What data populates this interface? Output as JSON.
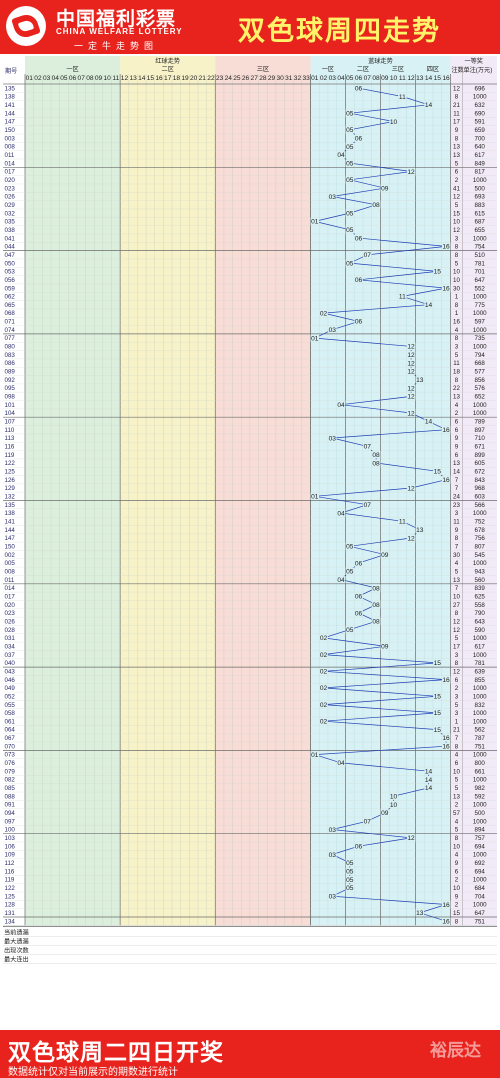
{
  "header": {
    "brand_cn": "中国福利彩票",
    "brand_en": "CHINA WELFARE LOTTERY",
    "slogan": "一定牛走势图",
    "title": "双色球周四走势"
  },
  "footer": {
    "title": "双色球周二四日开奖",
    "note": "数据统计仅对当前展示的期数进行统计",
    "watermark": "裕辰达"
  },
  "colors": {
    "red_ball": "#d41a1a",
    "blue_ball": "#1f3fb5",
    "zone_one_bg": "#dcefdc",
    "zone_two_bg": "#f7f2c8",
    "zone_three_bg": "#f8dcd6",
    "blue_zone_bg": "#d8f1f4",
    "header_bg": "#e8231d"
  },
  "chart_data": {
    "type": "table",
    "title": "双色球周四走势",
    "column_headers": {
      "period": "期号",
      "red_trend": "红球走势",
      "blue_trend": "蓝球走势",
      "first_prize": "一等奖",
      "count": "注数",
      "amount": "单注(万元)"
    },
    "red_zones": [
      "一区",
      "二区",
      "三区"
    ],
    "blue_zones": [
      "一区",
      "二区",
      "三区",
      "四区"
    ],
    "red_numbers": [
      "01",
      "02",
      "03",
      "04",
      "05",
      "06",
      "07",
      "08",
      "09",
      "10",
      "11",
      "12",
      "13",
      "14",
      "15",
      "16",
      "17",
      "18",
      "19",
      "20",
      "21",
      "22",
      "23",
      "24",
      "25",
      "26",
      "27",
      "28",
      "29",
      "30",
      "31",
      "32",
      "33"
    ],
    "blue_numbers": [
      "01",
      "02",
      "03",
      "04",
      "05",
      "06",
      "07",
      "08",
      "09",
      "10",
      "11",
      "12",
      "13",
      "14",
      "15",
      "16"
    ],
    "rows": [
      {
        "period": "135",
        "blue": 6,
        "count": 12,
        "amount": 696
      },
      {
        "period": "138",
        "blue": 11,
        "count": 8,
        "amount": 1000
      },
      {
        "period": "141",
        "blue": 14,
        "count": 21,
        "amount": 632
      },
      {
        "period": "144",
        "blue": 5,
        "count": 11,
        "amount": 690
      },
      {
        "period": "147",
        "blue": 10,
        "count": 17,
        "amount": 591
      },
      {
        "period": "150",
        "blue": 5,
        "count": 9,
        "amount": 659
      },
      {
        "period": "003",
        "blue": 6,
        "count": 8,
        "amount": 700
      },
      {
        "period": "008",
        "blue": 5,
        "count": 13,
        "amount": 640
      },
      {
        "period": "011",
        "blue": 4,
        "count": 13,
        "amount": 617
      },
      {
        "period": "014",
        "blue": 5,
        "count": 5,
        "amount": 849
      },
      {
        "period": "017",
        "blue": 12,
        "count": 6,
        "amount": 817
      },
      {
        "period": "020",
        "blue": 5,
        "count": 2,
        "amount": 1000
      },
      {
        "period": "023",
        "blue": 9,
        "count": 41,
        "amount": 500
      },
      {
        "period": "026",
        "blue": 3,
        "count": 12,
        "amount": 693
      },
      {
        "period": "029",
        "blue": 8,
        "count": 5,
        "amount": 883
      },
      {
        "period": "032",
        "blue": 5,
        "count": 15,
        "amount": 615
      },
      {
        "period": "035",
        "blue": 1,
        "count": 10,
        "amount": 687
      },
      {
        "period": "038",
        "blue": 5,
        "count": 12,
        "amount": 655
      },
      {
        "period": "041",
        "blue": 6,
        "count": 3,
        "amount": 1000
      },
      {
        "period": "044",
        "blue": 16,
        "count": 8,
        "amount": 754
      },
      {
        "period": "047",
        "blue": 7,
        "count": 8,
        "amount": 510
      },
      {
        "period": "050",
        "blue": 5,
        "count": 5,
        "amount": 781
      },
      {
        "period": "053",
        "blue": 15,
        "count": 10,
        "amount": 701
      },
      {
        "period": "056",
        "blue": 6,
        "count": 10,
        "amount": 647
      },
      {
        "period": "059",
        "blue": 16,
        "count": 30,
        "amount": 552
      },
      {
        "period": "062",
        "blue": 11,
        "count": 1,
        "amount": 1000
      },
      {
        "period": "065",
        "blue": 14,
        "count": 8,
        "amount": 775
      },
      {
        "period": "068",
        "blue": 2,
        "count": 1,
        "amount": 1000
      },
      {
        "period": "071",
        "blue": 6,
        "count": 16,
        "amount": 597
      },
      {
        "period": "074",
        "blue": 3,
        "count": 4,
        "amount": 1000
      },
      {
        "period": "077",
        "blue": 1,
        "count": 8,
        "amount": 735
      },
      {
        "period": "080",
        "blue": 12,
        "count": 3,
        "amount": 1000
      },
      {
        "period": "083",
        "blue": 12,
        "count": 5,
        "amount": 794
      },
      {
        "period": "086",
        "blue": 12,
        "count": 11,
        "amount": 668
      },
      {
        "period": "089",
        "blue": 12,
        "count": 18,
        "amount": 577
      },
      {
        "period": "092",
        "blue": 13,
        "count": 8,
        "amount": 856
      },
      {
        "period": "095",
        "blue": 12,
        "count": 22,
        "amount": 576
      },
      {
        "period": "098",
        "blue": 12,
        "count": 13,
        "amount": 652
      },
      {
        "period": "101",
        "blue": 4,
        "count": 4,
        "amount": 1000
      },
      {
        "period": "104",
        "blue": 12,
        "count": 2,
        "amount": 1000
      },
      {
        "period": "107",
        "blue": 14,
        "count": 6,
        "amount": 789
      },
      {
        "period": "110",
        "blue": 16,
        "count": 6,
        "amount": 897
      },
      {
        "period": "113",
        "blue": 3,
        "count": 9,
        "amount": 710
      },
      {
        "period": "116",
        "blue": 7,
        "count": 9,
        "amount": 671
      },
      {
        "period": "119",
        "blue": 8,
        "count": 6,
        "amount": 899
      },
      {
        "period": "122",
        "blue": 8,
        "count": 13,
        "amount": 605
      },
      {
        "period": "125",
        "blue": 15,
        "count": 14,
        "amount": 672
      },
      {
        "period": "126",
        "blue": 16,
        "count": 7,
        "amount": 843
      },
      {
        "period": "129",
        "blue": 12,
        "count": 7,
        "amount": 968
      },
      {
        "period": "132",
        "blue": 1,
        "count": 24,
        "amount": 603
      },
      {
        "period": "135",
        "blue": 7,
        "count": 23,
        "amount": 566
      },
      {
        "period": "138",
        "blue": 4,
        "count": 3,
        "amount": 1000
      },
      {
        "period": "141",
        "blue": 11,
        "count": 11,
        "amount": 752
      },
      {
        "period": "144",
        "blue": 13,
        "count": 9,
        "amount": 678
      },
      {
        "period": "147",
        "blue": 12,
        "count": 8,
        "amount": 756
      },
      {
        "period": "150",
        "blue": 5,
        "count": 7,
        "amount": 807
      },
      {
        "period": "002",
        "blue": 9,
        "count": 30,
        "amount": 545
      },
      {
        "period": "005",
        "blue": 6,
        "count": 4,
        "amount": 1000
      },
      {
        "period": "008",
        "blue": 5,
        "count": 5,
        "amount": 943
      },
      {
        "period": "011",
        "blue": 4,
        "count": 13,
        "amount": 560
      },
      {
        "period": "014",
        "blue": 8,
        "count": 7,
        "amount": 839
      },
      {
        "period": "017",
        "blue": 6,
        "count": 10,
        "amount": 625
      },
      {
        "period": "020",
        "blue": 8,
        "count": 27,
        "amount": 558
      },
      {
        "period": "023",
        "blue": 6,
        "count": 8,
        "amount": 790
      },
      {
        "period": "026",
        "blue": 8,
        "count": 12,
        "amount": 643
      },
      {
        "period": "028",
        "blue": 5,
        "count": 12,
        "amount": 590
      },
      {
        "period": "031",
        "blue": 2,
        "count": 5,
        "amount": 1000
      },
      {
        "period": "034",
        "blue": 9,
        "count": 17,
        "amount": 617
      },
      {
        "period": "037",
        "blue": 2,
        "count": 3,
        "amount": 1000
      },
      {
        "period": "040",
        "blue": 15,
        "count": 8,
        "amount": 781
      },
      {
        "period": "043",
        "blue": 2,
        "count": 12,
        "amount": 639
      },
      {
        "period": "046",
        "blue": 16,
        "count": 6,
        "amount": 855
      },
      {
        "period": "049",
        "blue": 2,
        "count": 2,
        "amount": 1000
      },
      {
        "period": "052",
        "blue": 15,
        "count": 3,
        "amount": 1000
      },
      {
        "period": "055",
        "blue": 2,
        "count": 5,
        "amount": 832
      },
      {
        "period": "058",
        "blue": 15,
        "count": 3,
        "amount": 1000
      },
      {
        "period": "061",
        "blue": 2,
        "count": 1,
        "amount": 1000
      },
      {
        "period": "064",
        "blue": 15,
        "count": 21,
        "amount": 562
      },
      {
        "period": "067",
        "blue": 16,
        "count": 7,
        "amount": 787
      },
      {
        "period": "070",
        "blue": 16,
        "count": 8,
        "amount": 751
      },
      {
        "period": "073",
        "blue": 1,
        "count": 4,
        "amount": 1000
      },
      {
        "period": "076",
        "blue": 4,
        "count": 6,
        "amount": 800
      },
      {
        "period": "079",
        "blue": 14,
        "count": 10,
        "amount": 661
      },
      {
        "period": "082",
        "blue": 14,
        "count": 5,
        "amount": 1000
      },
      {
        "period": "085",
        "blue": 14,
        "count": 5,
        "amount": 982
      },
      {
        "period": "088",
        "blue": 10,
        "count": 13,
        "amount": 592
      },
      {
        "period": "091",
        "blue": 10,
        "count": 2,
        "amount": 1000
      },
      {
        "period": "094",
        "blue": 9,
        "count": 57,
        "amount": 500
      },
      {
        "period": "097",
        "blue": 7,
        "count": 4,
        "amount": 1000
      },
      {
        "period": "100",
        "blue": 3,
        "count": 5,
        "amount": 894
      },
      {
        "period": "103",
        "blue": 12,
        "count": 8,
        "amount": 757
      },
      {
        "period": "106",
        "blue": 6,
        "count": 10,
        "amount": 694
      },
      {
        "period": "109",
        "blue": 3,
        "count": 4,
        "amount": 1000
      },
      {
        "period": "112",
        "blue": 5,
        "count": 9,
        "amount": 692
      },
      {
        "period": "116",
        "blue": 5,
        "count": 6,
        "amount": 694
      },
      {
        "period": "119",
        "blue": 5,
        "count": 2,
        "amount": 1000
      },
      {
        "period": "122",
        "blue": 5,
        "count": 10,
        "amount": 684
      },
      {
        "period": "125",
        "blue": 3,
        "count": 9,
        "amount": 704
      },
      {
        "period": "128",
        "blue": 16,
        "count": 2,
        "amount": 1000
      },
      {
        "period": "131",
        "blue": 13,
        "count": 15,
        "amount": 647
      },
      {
        "period": "134",
        "blue": 16,
        "count": 8,
        "amount": 751
      }
    ],
    "stat_labels": [
      "当前遗漏",
      "最大遗漏",
      "出现次数",
      "最大连出"
    ]
  }
}
